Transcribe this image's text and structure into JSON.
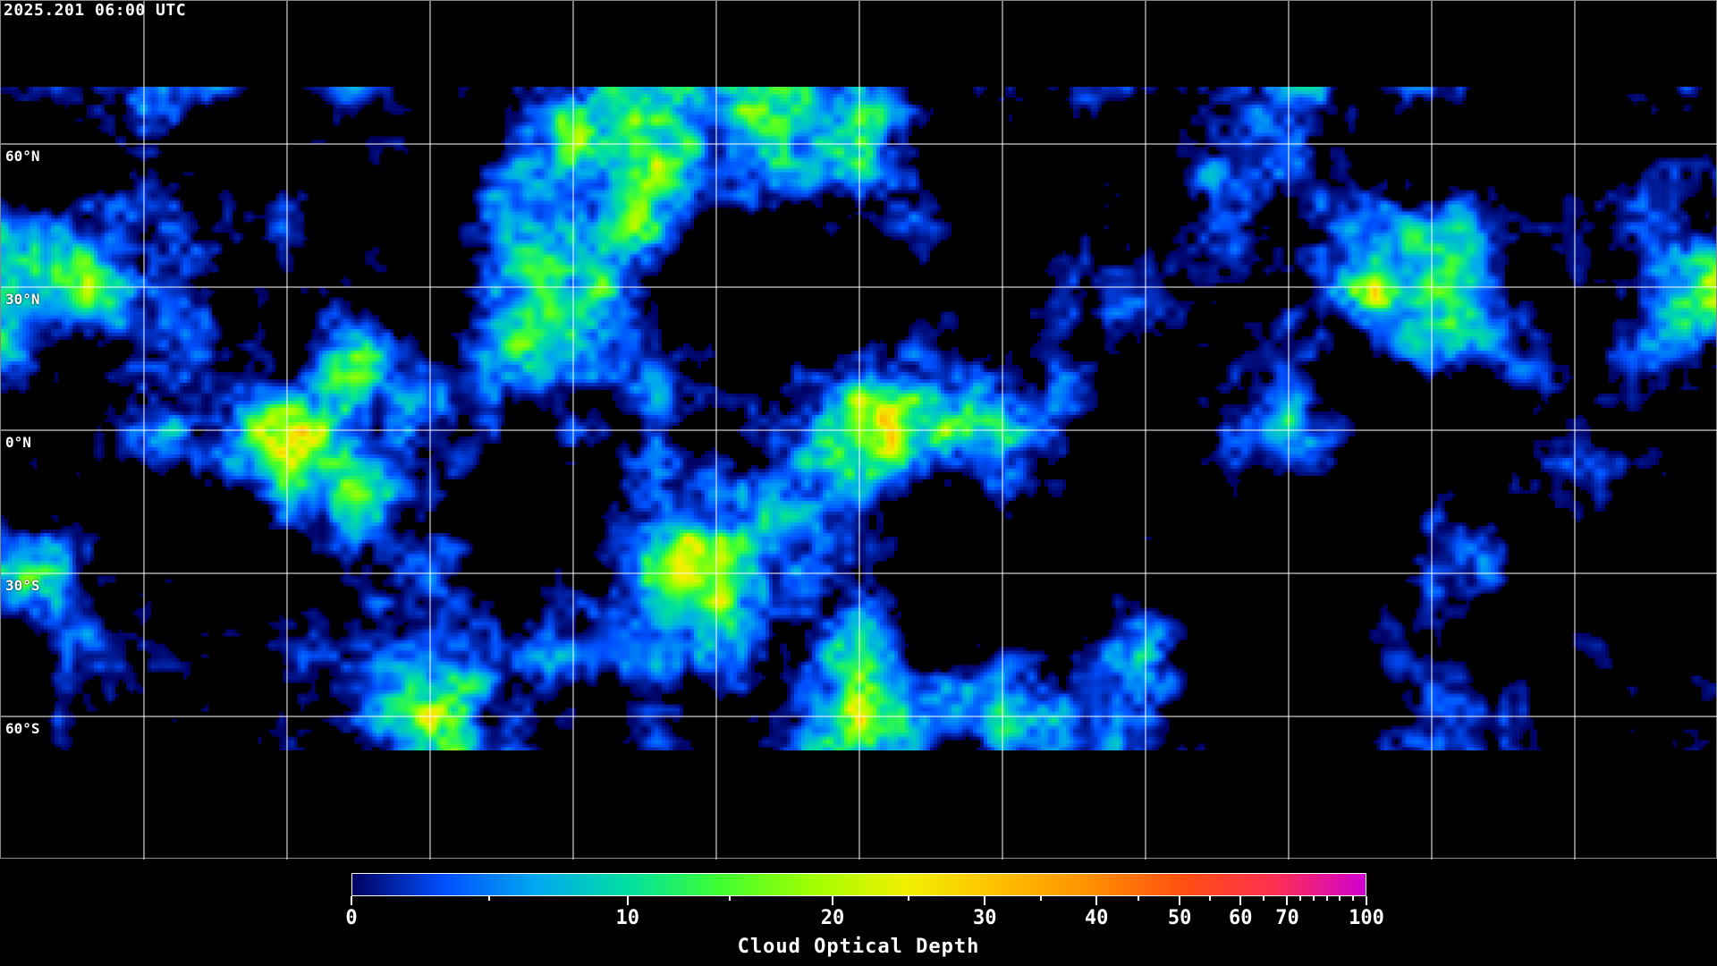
{
  "timestamp": "2025.201 06:00 UTC",
  "map": {
    "projection": "equirectangular",
    "center_longitude": 0,
    "gridline_spacing_degrees": 30,
    "gridline_color": "#ffffff",
    "coastline_color": "#ffffff",
    "latitude_labels": [
      {
        "lat": 60,
        "text": "60°N"
      },
      {
        "lat": 30,
        "text": "30°N"
      },
      {
        "lat": 0,
        "text": "0°N"
      },
      {
        "lat": -30,
        "text": "30°S"
      },
      {
        "lat": -60,
        "text": "60°S"
      }
    ]
  },
  "colorbar": {
    "title": "Cloud Optical Depth",
    "range": [
      0,
      100
    ],
    "colors": [
      "#000060",
      "#0050ff",
      "#00a8f0",
      "#00e0a0",
      "#40ff30",
      "#a0ff00",
      "#f0f000",
      "#ffc000",
      "#ff9000",
      "#ff5010",
      "#ff3050",
      "#d000d0"
    ],
    "major_ticks": [
      {
        "value": 0,
        "label": "0"
      },
      {
        "value": 10,
        "label": "10"
      },
      {
        "value": 20,
        "label": "20"
      },
      {
        "value": 30,
        "label": "30"
      },
      {
        "value": 40,
        "label": "40"
      },
      {
        "value": 50,
        "label": "50"
      },
      {
        "value": 60,
        "label": "60"
      },
      {
        "value": 70,
        "label": "70"
      },
      {
        "value": 100,
        "label": "100"
      }
    ],
    "minor_ticks": [
      5,
      15,
      25,
      35,
      45,
      55,
      65,
      75,
      80,
      85,
      90,
      95
    ]
  }
}
